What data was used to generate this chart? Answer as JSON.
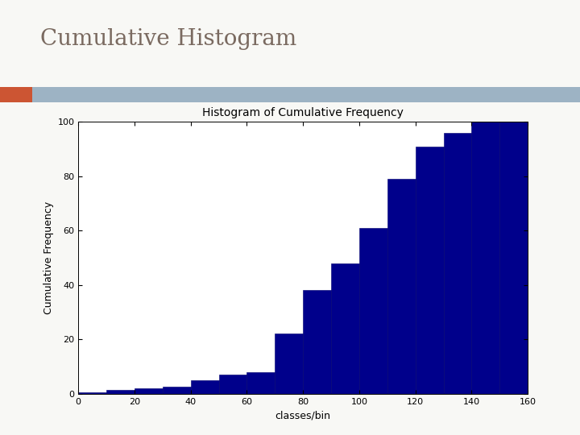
{
  "title_slide": "Cumulative Histogram",
  "title_slide_color": "#7a6a60",
  "chart_title": "Histogram of Cumulative Frequency",
  "xlabel": "classes/bin",
  "ylabel": "Cumulative Frequency",
  "bar_color": "#00008B",
  "bar_edgecolor": "#00006e",
  "xlim": [
    0,
    160
  ],
  "ylim": [
    0,
    100
  ],
  "xticks": [
    0,
    20,
    40,
    60,
    80,
    100,
    120,
    140,
    160
  ],
  "yticks": [
    0,
    20,
    40,
    60,
    80,
    100
  ],
  "background_color": "#ffffff",
  "slide_bg": "#f8f8f5",
  "header_bar_color": "#9db3c4",
  "accent_bar_color": "#cc5533",
  "cum_vals": [
    0.5,
    1.5,
    2.0,
    2.5,
    5.0,
    7.0,
    8.0,
    22.0,
    38.0,
    48.0,
    61.0,
    79.0,
    91.0,
    96.0,
    100.0,
    100.0
  ],
  "bin_starts": [
    0,
    10,
    20,
    30,
    40,
    50,
    60,
    70,
    80,
    90,
    100,
    110,
    120,
    130,
    140,
    150
  ],
  "figsize": [
    7.2,
    5.4
  ],
  "dpi": 100
}
